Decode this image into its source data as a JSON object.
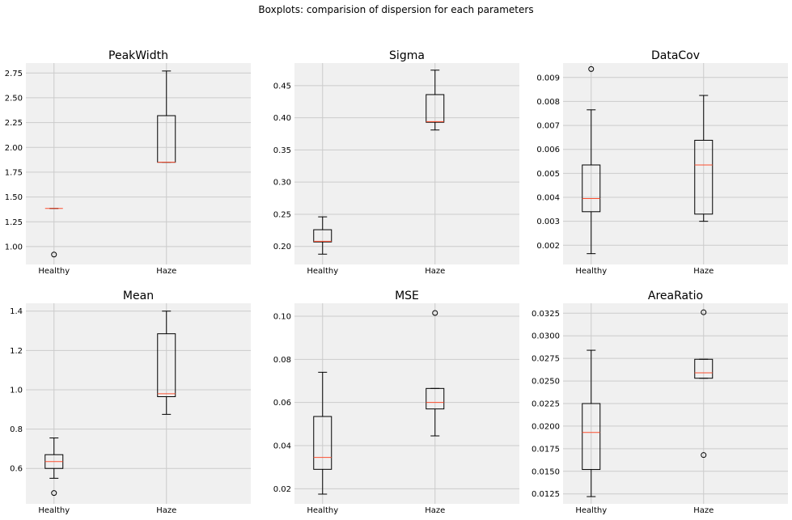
{
  "figure": {
    "suptitle": "Boxplots: comparision of dispersion for each parameters",
    "background": "#ffffff",
    "axes_background": "#f0f0f0",
    "grid_color": "#cbcbcb",
    "box_color": "#000000",
    "median_color": "#fc4f30"
  },
  "chart_data": [
    {
      "type": "boxplot",
      "title": "PeakWidth",
      "categories": [
        "Healthy",
        "Haze"
      ],
      "ylim": [
        0.82,
        2.85
      ],
      "yticks": [
        1.0,
        1.25,
        1.5,
        1.75,
        2.0,
        2.25,
        2.5,
        2.75
      ],
      "ytick_labels": [
        "1.00",
        "1.25",
        "1.50",
        "1.75",
        "2.00",
        "2.25",
        "2.50",
        "2.75"
      ],
      "grid": true,
      "boxes": [
        {
          "label": "Healthy",
          "whislo": 1.385,
          "q1": 1.385,
          "med": 1.385,
          "q3": 1.385,
          "whishi": 1.385,
          "fliers": [
            0.92
          ]
        },
        {
          "label": "Haze",
          "whislo": 1.85,
          "q1": 1.85,
          "med": 1.85,
          "q3": 2.32,
          "whishi": 2.77,
          "fliers": []
        }
      ]
    },
    {
      "type": "boxplot",
      "title": "Sigma",
      "categories": [
        "Healthy",
        "Haze"
      ],
      "ylim": [
        0.172,
        0.485
      ],
      "yticks": [
        0.2,
        0.25,
        0.3,
        0.35,
        0.4,
        0.45
      ],
      "ytick_labels": [
        "0.20",
        "0.25",
        "0.30",
        "0.35",
        "0.40",
        "0.45"
      ],
      "grid": true,
      "boxes": [
        {
          "label": "Healthy",
          "whislo": 0.188,
          "q1": 0.207,
          "med": 0.208,
          "q3": 0.226,
          "whishi": 0.246,
          "fliers": []
        },
        {
          "label": "Haze",
          "whislo": 0.381,
          "q1": 0.393,
          "med": 0.394,
          "q3": 0.436,
          "whishi": 0.474,
          "fliers": []
        }
      ]
    },
    {
      "type": "boxplot",
      "title": "DataCov",
      "categories": [
        "Healthy",
        "Haze"
      ],
      "ylim": [
        0.0012,
        0.0096
      ],
      "yticks": [
        0.002,
        0.003,
        0.004,
        0.005,
        0.006,
        0.007,
        0.008,
        0.009
      ],
      "ytick_labels": [
        "0.002",
        "0.003",
        "0.004",
        "0.005",
        "0.006",
        "0.007",
        "0.008",
        "0.009"
      ],
      "grid": true,
      "boxes": [
        {
          "label": "Healthy",
          "whislo": 0.00165,
          "q1": 0.0034,
          "med": 0.00395,
          "q3": 0.00535,
          "whishi": 0.00765,
          "fliers": [
            0.00935
          ]
        },
        {
          "label": "Haze",
          "whislo": 0.003,
          "q1": 0.0033,
          "med": 0.00535,
          "q3": 0.00638,
          "whishi": 0.00825,
          "fliers": []
        }
      ]
    },
    {
      "type": "boxplot",
      "title": "Mean",
      "categories": [
        "Healthy",
        "Haze"
      ],
      "ylim": [
        0.42,
        1.44
      ],
      "yticks": [
        0.6,
        0.8,
        1.0,
        1.2,
        1.4
      ],
      "ytick_labels": [
        "0.6",
        "0.8",
        "1.0",
        "1.2",
        "1.4"
      ],
      "grid": true,
      "boxes": [
        {
          "label": "Healthy",
          "whislo": 0.55,
          "q1": 0.6,
          "med": 0.635,
          "q3": 0.67,
          "whishi": 0.755,
          "fliers": [
            0.475
          ]
        },
        {
          "label": "Haze",
          "whislo": 0.875,
          "q1": 0.965,
          "med": 0.98,
          "q3": 1.285,
          "whishi": 1.4,
          "fliers": []
        }
      ]
    },
    {
      "type": "boxplot",
      "title": "MSE",
      "categories": [
        "Healthy",
        "Haze"
      ],
      "ylim": [
        0.013,
        0.106
      ],
      "yticks": [
        0.02,
        0.04,
        0.06,
        0.08,
        0.1
      ],
      "ytick_labels": [
        "0.02",
        "0.04",
        "0.06",
        "0.08",
        "0.10"
      ],
      "grid": true,
      "boxes": [
        {
          "label": "Healthy",
          "whislo": 0.0175,
          "q1": 0.029,
          "med": 0.0345,
          "q3": 0.0535,
          "whishi": 0.074,
          "fliers": []
        },
        {
          "label": "Haze",
          "whislo": 0.0445,
          "q1": 0.057,
          "med": 0.06,
          "q3": 0.0665,
          "whishi": 0.0665,
          "fliers": [
            0.1015
          ]
        }
      ]
    },
    {
      "type": "boxplot",
      "title": "AreaRatio",
      "categories": [
        "Healthy",
        "Haze"
      ],
      "ylim": [
        0.0114,
        0.0336
      ],
      "yticks": [
        0.0125,
        0.015,
        0.0175,
        0.02,
        0.0225,
        0.025,
        0.0275,
        0.03,
        0.0325
      ],
      "ytick_labels": [
        "0.0125",
        "0.0150",
        "0.0175",
        "0.0200",
        "0.0225",
        "0.0250",
        "0.0275",
        "0.0300",
        "0.0325"
      ],
      "grid": true,
      "boxes": [
        {
          "label": "Healthy",
          "whislo": 0.0122,
          "q1": 0.0152,
          "med": 0.0193,
          "q3": 0.0225,
          "whishi": 0.0284,
          "fliers": []
        },
        {
          "label": "Haze",
          "whislo": 0.0253,
          "q1": 0.0253,
          "med": 0.0259,
          "q3": 0.0274,
          "whishi": 0.0274,
          "fliers": [
            0.0326,
            0.0168
          ]
        }
      ]
    }
  ]
}
